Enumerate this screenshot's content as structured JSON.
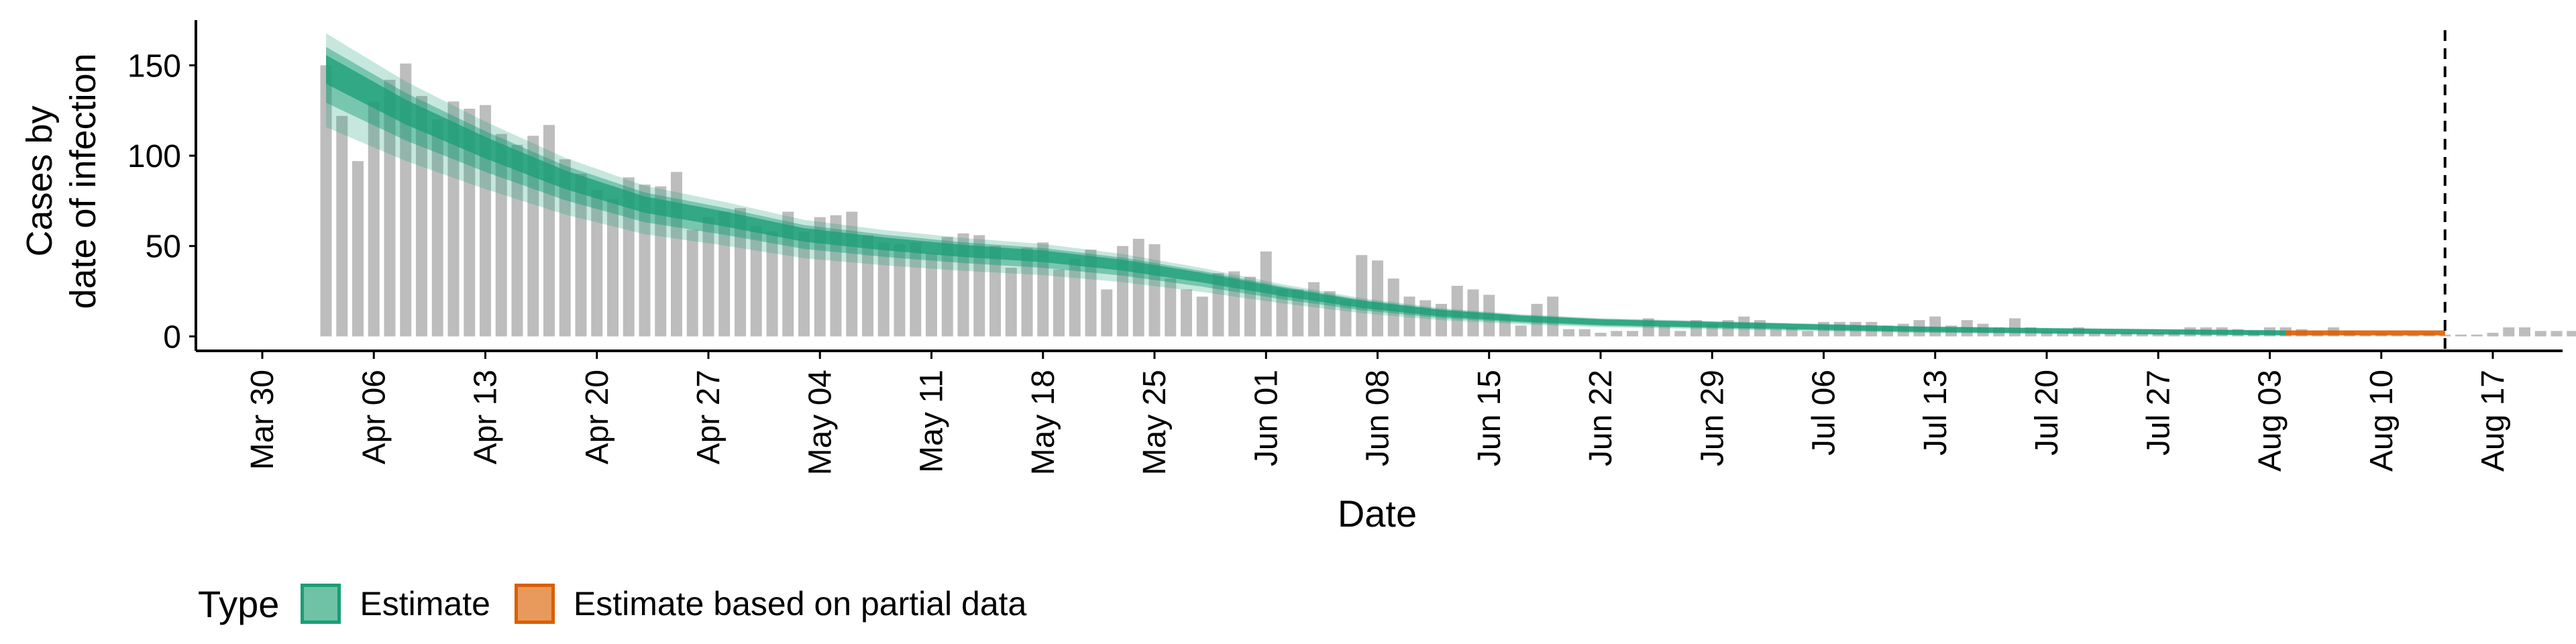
{
  "chart_data": {
    "type": "bar",
    "xlabel": "Date",
    "ylabel_lines": [
      "Cases by",
      "date of infection"
    ],
    "x_ticks": [
      "Mar 30",
      "Apr 06",
      "Apr 13",
      "Apr 20",
      "Apr 27",
      "May 04",
      "May 11",
      "May 18",
      "May 25",
      "Jun 01",
      "Jun 08",
      "Jun 15",
      "Jun 22",
      "Jun 29",
      "Jul 06",
      "Jul 13",
      "Jul 20",
      "Jul 27",
      "Aug 03",
      "Aug 10",
      "Aug 17"
    ],
    "y_ticks": [
      0,
      50,
      100,
      150
    ],
    "ylim": [
      -8,
      175
    ],
    "x_start_date": "2020-04-03",
    "bars": [
      150,
      122,
      97,
      130,
      142,
      151,
      133,
      120,
      130,
      126,
      128,
      112,
      106,
      111,
      117,
      98,
      90,
      81,
      76,
      88,
      84,
      83,
      91,
      59,
      66,
      69,
      71,
      61,
      58,
      69,
      58,
      66,
      67,
      69,
      56,
      52,
      51,
      52,
      46,
      55,
      57,
      56,
      50,
      38,
      49,
      52,
      37,
      43,
      48,
      26,
      50,
      54,
      51,
      32,
      26,
      22,
      35,
      36,
      33,
      47,
      26,
      26,
      30,
      25,
      20,
      45,
      42,
      32,
      22,
      20,
      18,
      28,
      26,
      23,
      12,
      6,
      18,
      22,
      4,
      4,
      2,
      3,
      3,
      10,
      6,
      3,
      9,
      7,
      9,
      11,
      9,
      4,
      5,
      3,
      8,
      8,
      8,
      8,
      6,
      7,
      9,
      11,
      6,
      9,
      7,
      5,
      10,
      5,
      3,
      3,
      5,
      3,
      2,
      2,
      2,
      2,
      3,
      5,
      5,
      5,
      4,
      3,
      5,
      5,
      4,
      3,
      5,
      3,
      1,
      2,
      1,
      1,
      2,
      1,
      1,
      1,
      2,
      5,
      5,
      3,
      3,
      3,
      2,
      3,
      1,
      2,
      2,
      2,
      3,
      3,
      3,
      1,
      1,
      1,
      1,
      1,
      1
    ],
    "series": [
      {
        "name": "Estimate",
        "start_date": "2020-04-03",
        "end_date": "2020-08-04",
        "median_anchors": [
          {
            "day": 0,
            "y": 150
          },
          {
            "day": 5,
            "y": 126
          },
          {
            "day": 10,
            "y": 106
          },
          {
            "day": 15,
            "y": 88
          },
          {
            "day": 20,
            "y": 74
          },
          {
            "day": 25,
            "y": 66
          },
          {
            "day": 30,
            "y": 57
          },
          {
            "day": 35,
            "y": 52
          },
          {
            "day": 40,
            "y": 48
          },
          {
            "day": 45,
            "y": 45
          },
          {
            "day": 50,
            "y": 40
          },
          {
            "day": 55,
            "y": 33
          },
          {
            "day": 60,
            "y": 25
          },
          {
            "day": 65,
            "y": 18
          },
          {
            "day": 70,
            "y": 13
          },
          {
            "day": 75,
            "y": 10
          },
          {
            "day": 80,
            "y": 8
          },
          {
            "day": 90,
            "y": 6
          },
          {
            "day": 100,
            "y": 4
          },
          {
            "day": 110,
            "y": 3
          },
          {
            "day": 123,
            "y": 2
          }
        ],
        "color": "#1b9e77"
      },
      {
        "name": "Estimate based on partial data",
        "start_date": "2020-08-04",
        "end_date": "2020-08-14",
        "median_anchors": [
          {
            "day": 123,
            "y": 2
          },
          {
            "day": 133,
            "y": 2
          }
        ],
        "color": "#d95f02"
      }
    ],
    "vline_date": "2020-08-14",
    "colors": {
      "bar": "#bdbdbd",
      "estimate": "#1b9e77",
      "partial": "#d95f02"
    }
  },
  "legend": {
    "title": "Type",
    "items": [
      {
        "label": "Estimate",
        "fill": "#6fc2a5",
        "stroke": "#1b9e77"
      },
      {
        "label": "Estimate based on partial data",
        "fill": "#e89a5c",
        "stroke": "#d95f02"
      }
    ]
  }
}
